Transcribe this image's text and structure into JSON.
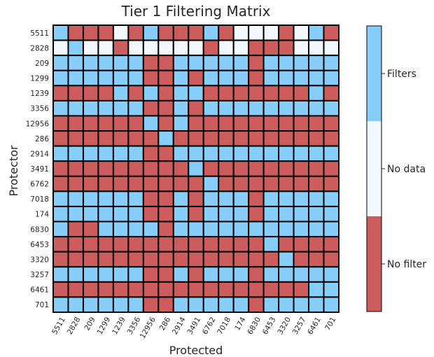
{
  "chart_data": {
    "type": "heatmap",
    "title": "Tier 1 Filtering Matrix",
    "xlabel": "Protected",
    "ylabel": "Protector",
    "x_categories": [
      "5511",
      "2828",
      "209",
      "1299",
      "1239",
      "3356",
      "12956",
      "286",
      "2914",
      "3491",
      "6762",
      "7018",
      "174",
      "6830",
      "6453",
      "3320",
      "3257",
      "6461",
      "701"
    ],
    "y_categories": [
      "5511",
      "2828",
      "209",
      "1299",
      "1239",
      "3356",
      "12956",
      "286",
      "2914",
      "3491",
      "6762",
      "7018",
      "174",
      "6830",
      "6453",
      "3320",
      "3257",
      "6461",
      "701"
    ],
    "value_legend": {
      "0": "No filter",
      "1": "No data",
      "2": "Filters"
    },
    "colors": {
      "0": "#cd5c5c",
      "1": "#f3f8ff",
      "2": "#87cefa"
    },
    "colorbar_ticks": [
      "No filter",
      "No data",
      "Filters"
    ],
    "values": [
      [
        2,
        0,
        0,
        0,
        1,
        0,
        2,
        0,
        0,
        0,
        2,
        0,
        1,
        1,
        1,
        0,
        1,
        2,
        0
      ],
      [
        1,
        2,
        1,
        1,
        0,
        1,
        1,
        1,
        1,
        1,
        0,
        1,
        1,
        0,
        0,
        0,
        1,
        1,
        1
      ],
      [
        2,
        2,
        2,
        2,
        2,
        2,
        0,
        0,
        2,
        2,
        2,
        2,
        2,
        0,
        2,
        2,
        2,
        2,
        2
      ],
      [
        2,
        2,
        2,
        2,
        2,
        2,
        0,
        0,
        2,
        0,
        2,
        2,
        2,
        0,
        2,
        2,
        2,
        2,
        2
      ],
      [
        0,
        0,
        0,
        0,
        2,
        0,
        2,
        0,
        2,
        2,
        0,
        0,
        0,
        0,
        0,
        0,
        0,
        2,
        0
      ],
      [
        2,
        2,
        2,
        2,
        2,
        2,
        0,
        0,
        2,
        0,
        2,
        2,
        2,
        2,
        2,
        2,
        2,
        2,
        2
      ],
      [
        0,
        0,
        0,
        0,
        0,
        0,
        2,
        0,
        2,
        0,
        0,
        0,
        0,
        0,
        0,
        0,
        0,
        0,
        0
      ],
      [
        0,
        0,
        0,
        0,
        0,
        0,
        0,
        2,
        0,
        0,
        0,
        0,
        0,
        0,
        0,
        0,
        0,
        0,
        0
      ],
      [
        2,
        2,
        2,
        2,
        2,
        2,
        0,
        0,
        2,
        2,
        2,
        2,
        2,
        2,
        2,
        2,
        2,
        2,
        2
      ],
      [
        0,
        0,
        0,
        0,
        0,
        0,
        0,
        0,
        0,
        2,
        0,
        0,
        0,
        0,
        0,
        0,
        0,
        0,
        0
      ],
      [
        0,
        0,
        0,
        0,
        0,
        0,
        0,
        0,
        0,
        0,
        2,
        0,
        0,
        0,
        0,
        0,
        0,
        0,
        0
      ],
      [
        2,
        2,
        2,
        2,
        2,
        2,
        0,
        0,
        2,
        0,
        2,
        2,
        2,
        0,
        2,
        2,
        2,
        2,
        2
      ],
      [
        2,
        2,
        2,
        2,
        2,
        2,
        0,
        0,
        2,
        0,
        2,
        2,
        2,
        0,
        2,
        2,
        2,
        2,
        2
      ],
      [
        2,
        0,
        0,
        2,
        2,
        2,
        2,
        0,
        2,
        2,
        2,
        2,
        2,
        2,
        2,
        2,
        2,
        2,
        2
      ],
      [
        0,
        0,
        0,
        0,
        0,
        0,
        0,
        0,
        0,
        0,
        0,
        0,
        0,
        0,
        2,
        0,
        0,
        0,
        0
      ],
      [
        0,
        0,
        0,
        0,
        0,
        0,
        0,
        0,
        0,
        0,
        0,
        0,
        0,
        0,
        0,
        2,
        0,
        0,
        0
      ],
      [
        2,
        2,
        2,
        2,
        2,
        2,
        0,
        0,
        2,
        0,
        2,
        2,
        2,
        0,
        2,
        2,
        2,
        2,
        2
      ],
      [
        0,
        0,
        0,
        0,
        0,
        0,
        0,
        0,
        0,
        0,
        0,
        0,
        0,
        0,
        0,
        0,
        0,
        2,
        2
      ],
      [
        2,
        2,
        2,
        2,
        2,
        2,
        0,
        0,
        2,
        2,
        2,
        2,
        2,
        0,
        2,
        2,
        2,
        2,
        2
      ]
    ]
  }
}
